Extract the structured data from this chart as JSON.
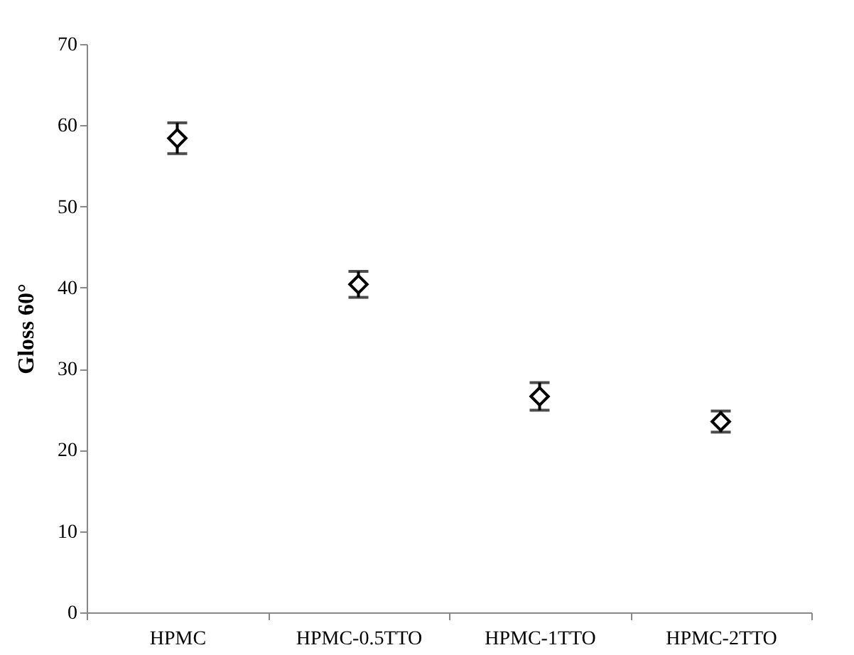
{
  "chart_data": {
    "type": "scatter",
    "ylabel": "Gloss 60°",
    "categories": [
      "HPMC",
      "HPMC-0.5TTO",
      "HPMC-1TTO",
      "HPMC-2TTO"
    ],
    "series": [
      {
        "color": "#000000",
        "values": [
          58.4,
          40.4,
          26.6,
          23.5
        ],
        "errors": [
          1.9,
          1.6,
          1.7,
          1.3
        ]
      }
    ],
    "ylim": [
      0,
      70
    ],
    "yticks": [
      0,
      10,
      20,
      30,
      40,
      50,
      60,
      70
    ],
    "grid": false,
    "marker": "diamond"
  }
}
